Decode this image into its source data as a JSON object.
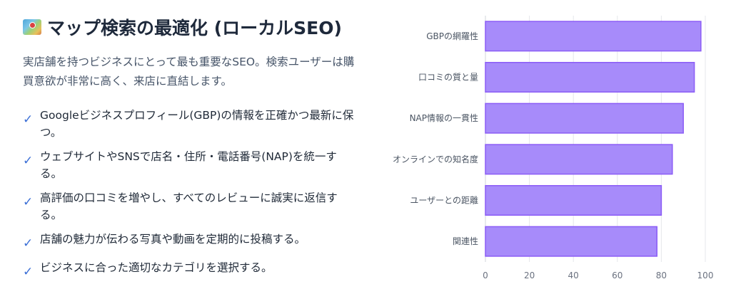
{
  "header": {
    "icon": "world-map-icon",
    "title": "マップ検索の最適化 (ローカルSEO)"
  },
  "intro": "実店舗を持つビジネスにとって最も重要なSEO。検索ユーザーは購買意欲が非常に高く、来店に直結します。",
  "points": [
    {
      "icon": "checkmark-icon",
      "text": "Googleビジネスプロフィール(GBP)の情報を正確かつ最新に保つ。"
    },
    {
      "icon": "checkmark-icon",
      "text": "ウェブサイトやSNSで店名・住所・電話番号(NAP)を統一する。"
    },
    {
      "icon": "checkmark-icon",
      "text": "高評価の口コミを増やし、すべてのレビューに誠実に返信する。"
    },
    {
      "icon": "checkmark-icon",
      "text": "店舗の魅力が伝わる写真や動画を定期的に投稿する。"
    },
    {
      "icon": "checkmark-icon",
      "text": "ビジネスに合った適切なカテゴリを選択する。"
    }
  ],
  "colors": {
    "bar_fill": "#a78bfa",
    "bar_stroke": "#8b5cf6",
    "check": "#3b6fd6"
  },
  "chart_data": {
    "type": "bar",
    "orientation": "horizontal",
    "categories": [
      "GBPの網羅性",
      "口コミの質と量",
      "NAP情報の一貫性",
      "オンラインでの知名度",
      "ユーザーとの距離",
      "関連性"
    ],
    "values": [
      98,
      95,
      90,
      85,
      80,
      78
    ],
    "xlim": [
      0,
      100
    ],
    "xticks": [
      "0",
      "20",
      "40",
      "60",
      "80",
      "100"
    ],
    "grid": true,
    "legend": "none"
  }
}
